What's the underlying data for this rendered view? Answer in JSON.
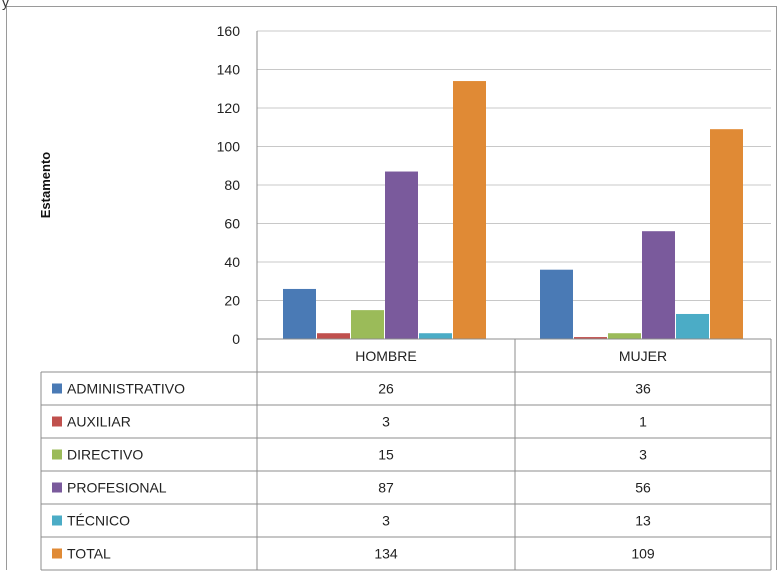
{
  "chart_data": {
    "type": "bar",
    "ylabel": "Estamento",
    "ylim": [
      0,
      160
    ],
    "yticks": [
      0,
      20,
      40,
      60,
      80,
      100,
      120,
      140,
      160
    ],
    "categories": [
      "HOMBRE",
      "MUJER"
    ],
    "grid": true,
    "legend": "data-table",
    "series": [
      {
        "name": "ADMINISTRATIVO",
        "color": "#4a7ab5",
        "values": [
          26,
          36
        ]
      },
      {
        "name": "AUXILIAR",
        "color": "#c0504d",
        "values": [
          3,
          1
        ]
      },
      {
        "name": "DIRECTIVO",
        "color": "#9bbb59",
        "values": [
          15,
          3
        ]
      },
      {
        "name": "PROFESIONAL",
        "color": "#7a5a9c",
        "values": [
          87,
          56
        ]
      },
      {
        "name": "TÉCNICO",
        "color": "#4bacc6",
        "values": [
          3,
          13
        ]
      },
      {
        "name": "TOTAL",
        "color": "#e08a35",
        "values": [
          134,
          109
        ]
      }
    ]
  },
  "stray_text": "y"
}
